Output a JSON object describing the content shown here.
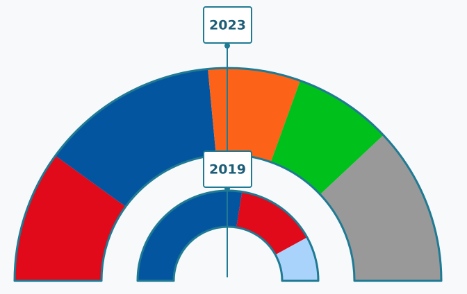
{
  "chart_data": {
    "type": "pie",
    "style": "nested-semicircle-donut",
    "rings": [
      {
        "name": "2023",
        "label": "2023",
        "segments": [
          {
            "color": "#e00a1a",
            "value": 0.2
          },
          {
            "color": "#0455a0",
            "value": 0.27
          },
          {
            "color": "#fd6318",
            "value": 0.14
          },
          {
            "color": "#00c11c",
            "value": 0.15
          },
          {
            "color": "#999999",
            "value": 0.24
          }
        ]
      },
      {
        "name": "2019",
        "label": "2019",
        "segments": [
          {
            "color": "#0455a0",
            "value": 0.55
          },
          {
            "color": "#e00a1a",
            "value": 0.29
          },
          {
            "color": "#a9d3fb",
            "value": 0.16
          }
        ]
      }
    ],
    "colors": {
      "outline": "#1f7a93",
      "label_border": "#1f7a93",
      "label_text": "#1c5d78",
      "background": "#f7f9fb"
    }
  }
}
